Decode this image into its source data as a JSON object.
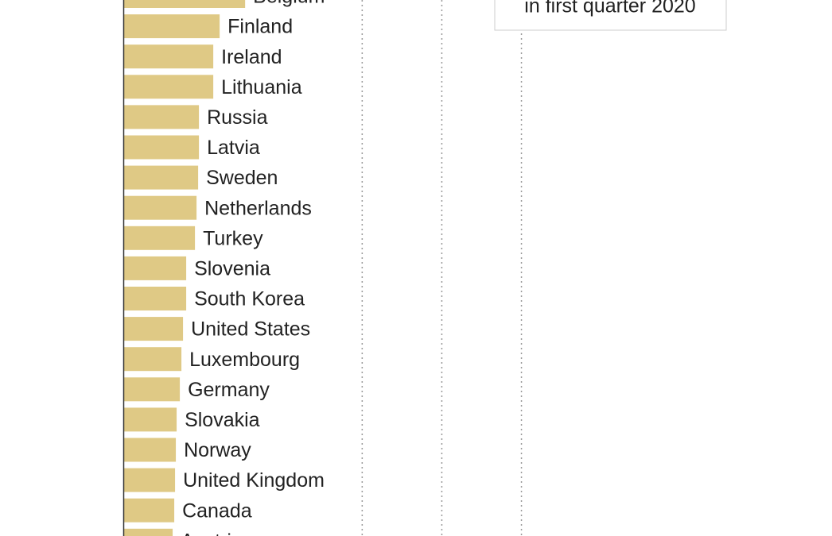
{
  "chart_data": {
    "type": "bar",
    "orientation": "horizontal",
    "annotation": "in first quarter 2020",
    "categories": [
      "Belgium",
      "Finland",
      "Ireland",
      "Lithuania",
      "Russia",
      "Latvia",
      "Sweden",
      "Netherlands",
      "Turkey",
      "Slovenia",
      "South Korea",
      "United States",
      "Luxembourg",
      "Germany",
      "Slovakia",
      "Norway",
      "United Kingdom",
      "Canada",
      "Austria"
    ],
    "values": [
      15.3,
      12.1,
      11.3,
      11.3,
      9.5,
      9.5,
      9.4,
      9.2,
      9.0,
      7.9,
      7.9,
      7.5,
      7.3,
      7.1,
      6.7,
      6.6,
      6.5,
      6.4,
      6.2
    ],
    "color": "#dfc985",
    "xlim": [
      0,
      89
    ],
    "xgrid": [
      30,
      40,
      50
    ],
    "grid": true
  }
}
